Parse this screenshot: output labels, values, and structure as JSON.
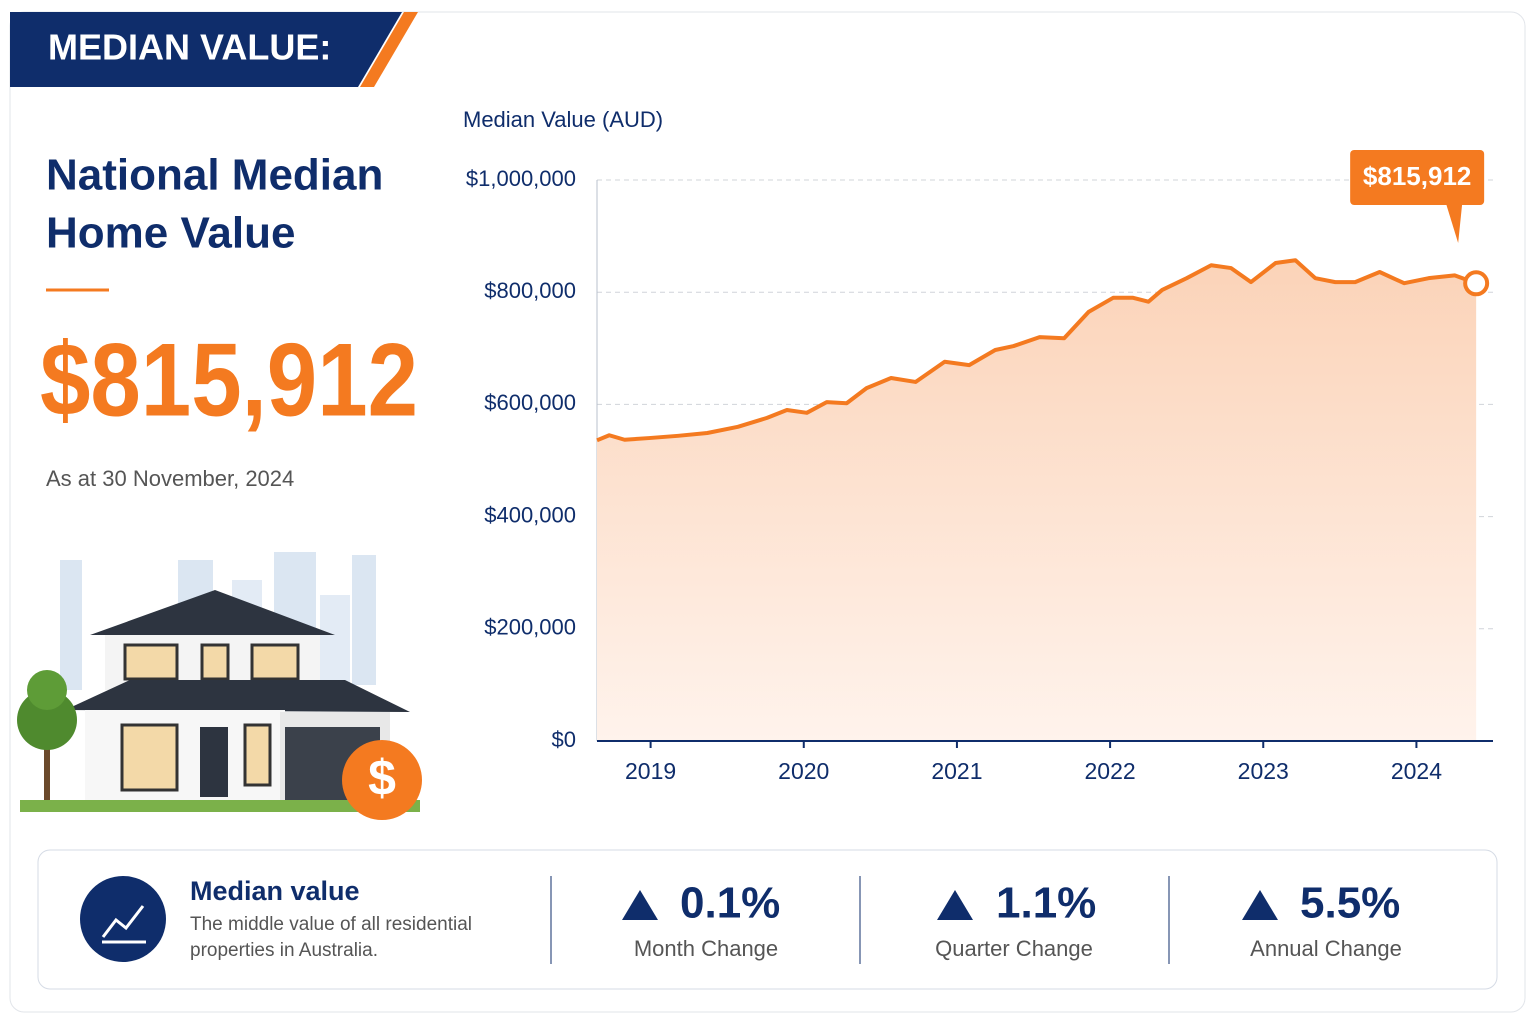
{
  "header": {
    "title": "MEDIAN VALUE:"
  },
  "summary": {
    "title_lines": [
      "National Median",
      "Home Value"
    ],
    "value": "$815,912",
    "date": "As at 30 November, 2024",
    "badge": "$"
  },
  "chart_data": {
    "type": "line",
    "y_label": "Median Value (AUD)",
    "x": [
      2018.65,
      2018.73,
      2018.83,
      2018.99,
      2019.18,
      2019.37,
      2019.57,
      2019.76,
      2019.89,
      2020.02,
      2020.15,
      2020.28,
      2020.41,
      2020.57,
      2020.73,
      2020.92,
      2021.08,
      2021.25,
      2021.37,
      2021.54,
      2021.7,
      2021.86,
      2022.02,
      2022.15,
      2022.25,
      2022.34,
      2022.5,
      2022.66,
      2022.79,
      2022.92,
      2023.08,
      2023.21,
      2023.34,
      2023.47,
      2023.6,
      2023.76,
      2023.92,
      2024.08,
      2024.25,
      2024.39
    ],
    "series": [
      {
        "color": "#f47a20",
        "values": [
          536000,
          545000,
          537000,
          540000,
          544000,
          549000,
          560000,
          576000,
          590000,
          585000,
          604000,
          602000,
          629000,
          647000,
          640000,
          676000,
          670000,
          697000,
          704000,
          720000,
          718000,
          765000,
          790000,
          790000,
          783000,
          804000,
          825000,
          848000,
          843000,
          818000,
          852000,
          857000,
          825000,
          818000,
          818000,
          836000,
          816000,
          825000,
          830000,
          815912
        ]
      }
    ],
    "callout": "$815,912",
    "xlim": [
      2018.65,
      2024.5
    ],
    "xticks": [
      2019,
      2020,
      2021,
      2022,
      2023,
      2024
    ],
    "ylim": [
      0,
      1000000
    ],
    "yticks": [
      {
        "value": 0,
        "label": "$0"
      },
      {
        "value": 200000,
        "label": "$200,000"
      },
      {
        "value": 400000,
        "label": "$400,000"
      },
      {
        "value": 600000,
        "label": "$600,000"
      },
      {
        "value": 800000,
        "label": "$800,000"
      },
      {
        "value": 1000000,
        "label": "$1,000,000"
      }
    ],
    "grid": true
  },
  "stats": {
    "title": "Median value",
    "description_lines": [
      "The middle value of all residential",
      "properties in Australia."
    ],
    "changes": [
      {
        "value": "0.1%",
        "label": "Month Change"
      },
      {
        "value": "1.1%",
        "label": "Quarter Change"
      },
      {
        "value": "5.5%",
        "label": "Annual Change"
      }
    ]
  }
}
